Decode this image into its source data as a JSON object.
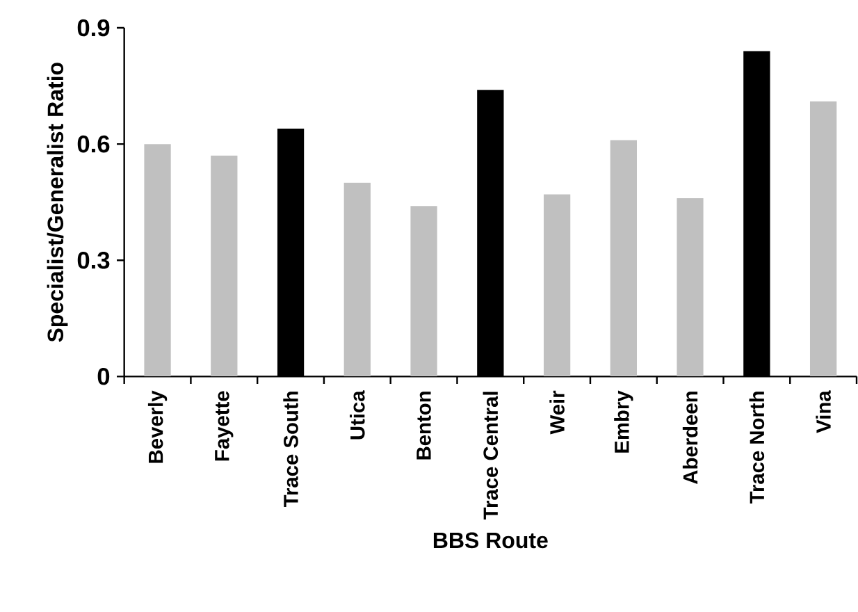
{
  "chart_data": {
    "type": "bar",
    "xlabel": "BBS Route",
    "ylabel": "Specialist/Generalist Ratio",
    "categories": [
      "Beverly",
      "Fayette",
      "Trace South",
      "Utica",
      "Benton",
      "Trace Central",
      "Weir",
      "Embry",
      "Aberdeen",
      "Trace North",
      "Vina"
    ],
    "values": [
      0.6,
      0.57,
      0.64,
      0.5,
      0.44,
      0.74,
      0.47,
      0.61,
      0.46,
      0.84,
      0.71
    ],
    "colors": [
      "#c0c0c0",
      "#c0c0c0",
      "#000000",
      "#c0c0c0",
      "#c0c0c0",
      "#000000",
      "#c0c0c0",
      "#c0c0c0",
      "#c0c0c0",
      "#000000",
      "#c0c0c0"
    ],
    "ylim": [
      0,
      0.9
    ],
    "yticks": [
      {
        "value": 0,
        "label": "0"
      },
      {
        "value": 0.3,
        "label": "0.3"
      },
      {
        "value": 0.6,
        "label": "0.6"
      },
      {
        "value": 0.9,
        "label": "0.9"
      }
    ],
    "grid": false
  }
}
